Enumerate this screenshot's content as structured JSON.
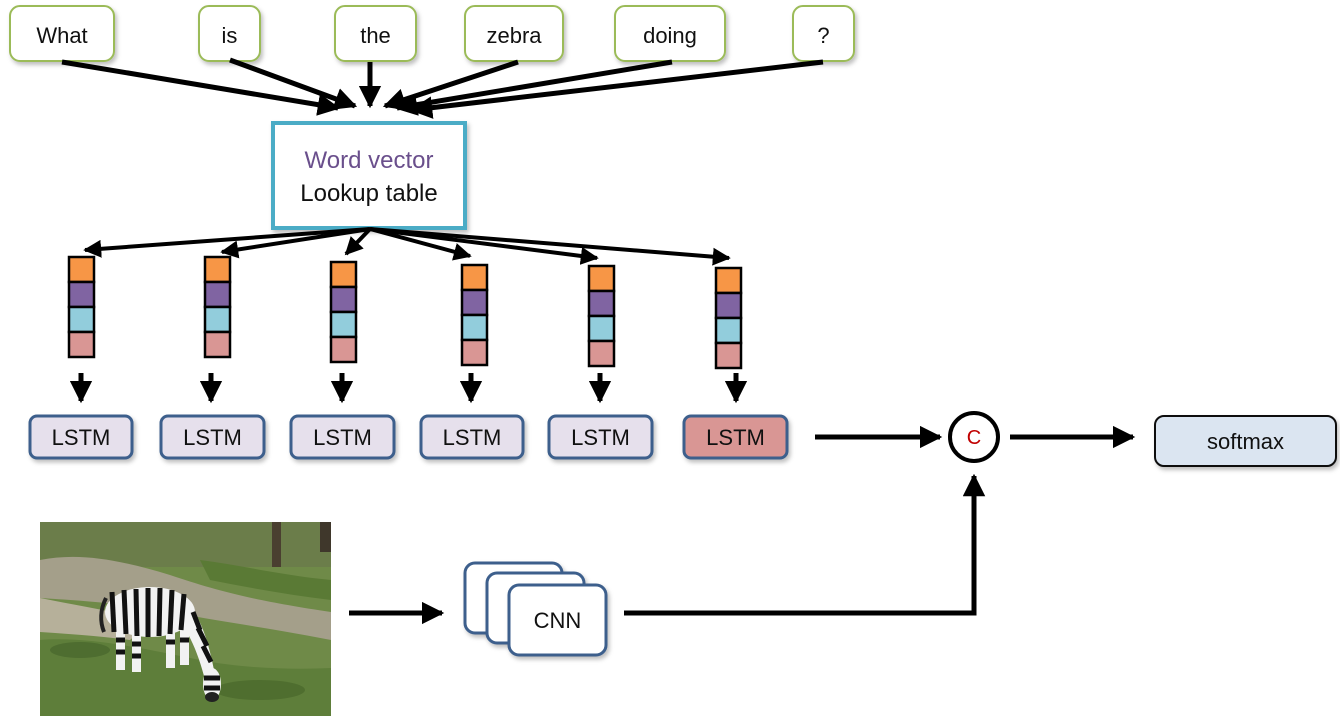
{
  "question_words": [
    "What",
    "is",
    "the",
    "zebra",
    "doing",
    "?"
  ],
  "lookup_table": {
    "line1": "Word vector",
    "line2": "Lookup table"
  },
  "lstm_label": "LSTM",
  "cnn_label": "CNN",
  "concat_label": "C",
  "softmax_label": "softmax",
  "image_subject": "zebra grazing on grass",
  "colors": {
    "word_border": "#9bbb59",
    "lookup_border": "#4bacc6",
    "lookup_line1": "#6a4f8c",
    "lstm_fill": "#e6e0ec",
    "lstm_border": "#3c5f8c",
    "lstm_final_fill": "#d99694",
    "softmax_fill": "#dbe5f1",
    "vec_orange": "#f79646",
    "vec_purple": "#8064a2",
    "vec_teal": "#92cddc",
    "vec_pink": "#d99694",
    "concat_letter": "#c00000"
  }
}
